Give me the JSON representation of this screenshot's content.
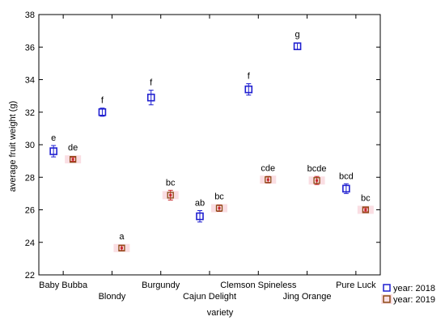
{
  "chart_data": {
    "type": "scatter",
    "title": "",
    "xlabel": "variety",
    "ylabel": "average fruit weight (g)",
    "ylim": [
      22,
      38
    ],
    "yticks": [
      22,
      24,
      26,
      28,
      30,
      32,
      34,
      36,
      38
    ],
    "grid": false,
    "legend_position": "bottom-right",
    "categories": [
      "Baby Bubba",
      "Blondy",
      "Burgundy",
      "Cajun Delight",
      "Clemson Spineless",
      "Jing Orange",
      "Pure Luck"
    ],
    "series": [
      {
        "name": "year: 2018",
        "color": "#1f1fd0",
        "values": [
          29.6,
          32.0,
          32.9,
          25.6,
          33.4,
          36.05,
          27.3
        ],
        "errors": [
          0.35,
          0.25,
          0.45,
          0.35,
          0.35,
          0.2,
          0.3
        ],
        "labels": [
          "e",
          "f",
          "f",
          "ab",
          "f",
          "g",
          "bcd"
        ]
      },
      {
        "name": "year: 2019",
        "color": "#c8282c",
        "edge_color": "#8b4a14",
        "values": [
          29.1,
          23.65,
          26.9,
          26.1,
          27.85,
          27.8,
          26.0
        ],
        "errors": [
          0.12,
          0.15,
          0.3,
          0.2,
          0.2,
          0.25,
          0.12
        ],
        "labels": [
          "de",
          "a",
          "bc",
          "bc",
          "cde",
          "bcde",
          "bc"
        ]
      }
    ]
  }
}
